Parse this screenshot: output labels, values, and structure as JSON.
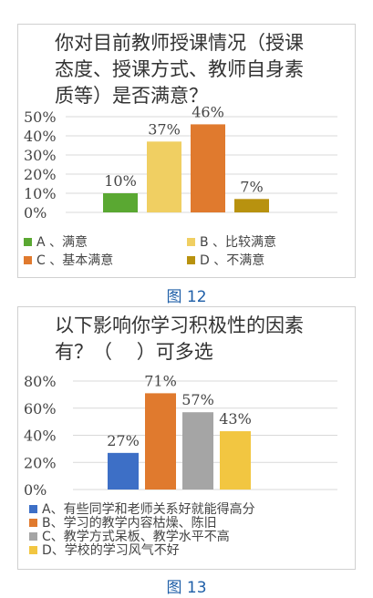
{
  "chart_data": [
    {
      "type": "bar",
      "title": "你对目前教师授课情况（授课\n态度、授课方式、教师自身素\n质等）是否满意？",
      "categories": [
        "A、满意",
        "B、比较满意",
        "C、基本满意",
        "D、不满意"
      ],
      "values": [
        10,
        37,
        46,
        7
      ],
      "value_labels": [
        "10%",
        "37%",
        "46%",
        "7%"
      ],
      "colors": [
        "#5aa832",
        "#f0cf62",
        "#e07a2e",
        "#b8920f"
      ],
      "ylim": [
        0,
        50
      ],
      "yticks": [
        "0%",
        "10%",
        "20%",
        "30%",
        "40%",
        "50%"
      ],
      "legend": [
        {
          "label": "A 、满意",
          "color": "#5aa832"
        },
        {
          "label": "B 、比较满意",
          "color": "#f0cf62"
        },
        {
          "label": "C 、基本满意",
          "color": "#e07a2e"
        },
        {
          "label": "D 、不满意",
          "color": "#b8920f"
        }
      ],
      "legend_position": "bottom",
      "grid": true,
      "caption": "图 12"
    },
    {
      "type": "bar",
      "title": "以下影响你学习积极性的因素\n有？（    ）可多选",
      "categories": [
        "A",
        "B",
        "C",
        "D"
      ],
      "values": [
        27,
        71,
        57,
        43
      ],
      "value_labels": [
        "27%",
        "71%",
        "57%",
        "43%"
      ],
      "colors": [
        "#3d6fc6",
        "#e07a2e",
        "#a5a5a5",
        "#f2c641"
      ],
      "ylim": [
        0,
        80
      ],
      "yticks": [
        "0%",
        "20%",
        "40%",
        "60%",
        "80%"
      ],
      "legend": [
        {
          "label": "A、有些同学和老师关系好就能得高分",
          "color": "#3d6fc6"
        },
        {
          "label": "B、学习的教学内容枯燥、陈旧",
          "color": "#e07a2e"
        },
        {
          "label": "C、教学方式呆板、教学水平不高",
          "color": "#a5a5a5"
        },
        {
          "label": "D、学校的学习风气不好",
          "color": "#f2c641"
        }
      ],
      "legend_position": "bottom",
      "grid": true,
      "caption": "图 13"
    }
  ]
}
